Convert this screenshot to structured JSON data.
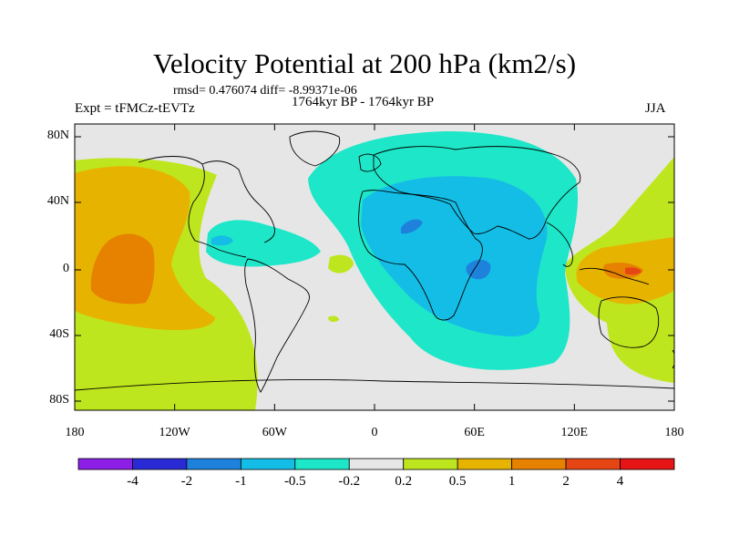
{
  "title": "Velocity Potential at 200 hPa (km2/s)",
  "stats": "rmsd= 0.476074 diff= -8.99371e-06",
  "experiment": "Expt = tFMCz-tEVTz",
  "period": "1764kyr BP - 1764kyr BP",
  "season": "JJA",
  "map": {
    "ocean_color": "#e6e6e6",
    "y_ticks": [
      "80N",
      "40N",
      "0",
      "40S",
      "80S"
    ],
    "x_ticks": [
      "180",
      "120W",
      "60W",
      "0",
      "60E",
      "120E",
      "180"
    ]
  },
  "colorbar": {
    "colors": [
      "#8c1ee6",
      "#2a2ad4",
      "#1e82dc",
      "#14bde6",
      "#1ee6c8",
      "#e6e6e6",
      "#bee61e",
      "#e6b400",
      "#e68200",
      "#e64614",
      "#e61414"
    ],
    "labels": [
      "-4",
      "-2",
      "-1",
      "-0.5",
      "-0.2",
      "0.2",
      "0.5",
      "1",
      "2",
      "4"
    ]
  }
}
